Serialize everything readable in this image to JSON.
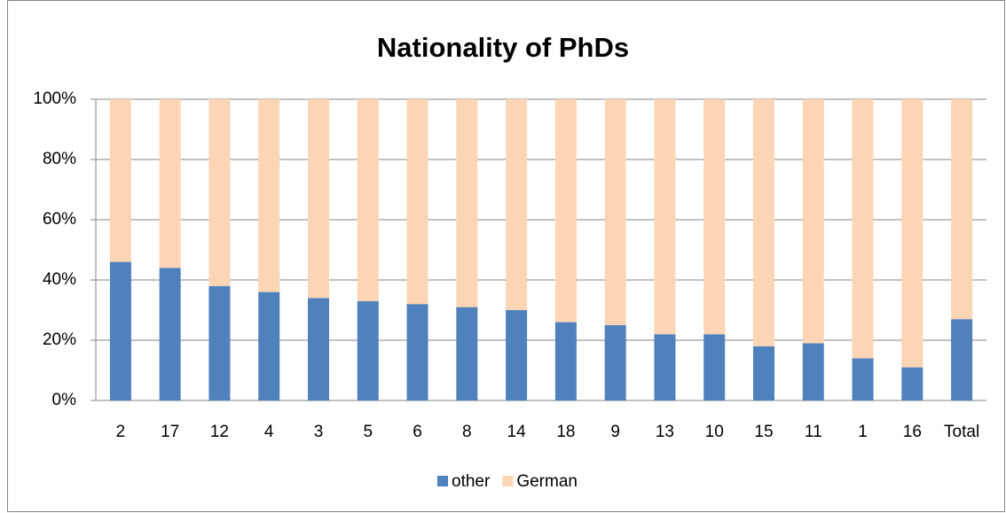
{
  "chart_data": {
    "type": "bar",
    "stacked": true,
    "title": "Nationality of PhDs",
    "categories": [
      "2",
      "17",
      "12",
      "4",
      "3",
      "5",
      "6",
      "8",
      "14",
      "18",
      "9",
      "13",
      "10",
      "15",
      "11",
      "1",
      "16",
      "Total"
    ],
    "series": [
      {
        "name": "other",
        "color": "#4f81bd",
        "values": [
          46,
          44,
          38,
          36,
          34,
          33,
          32,
          31,
          30,
          26,
          25,
          22,
          22,
          18,
          19,
          14,
          11,
          27
        ]
      },
      {
        "name": "German",
        "color": "#fcd5b5",
        "values": [
          54,
          56,
          62,
          64,
          66,
          67,
          68,
          69,
          70,
          74,
          75,
          78,
          78,
          82,
          81,
          86,
          89,
          73
        ]
      }
    ],
    "ylim": [
      0,
      100
    ],
    "yticks": [
      {
        "value": 0,
        "label": "0%"
      },
      {
        "value": 20,
        "label": "20%"
      },
      {
        "value": 40,
        "label": "40%"
      },
      {
        "value": 60,
        "label": "60%"
      },
      {
        "value": 80,
        "label": "80%"
      },
      {
        "value": 100,
        "label": "100%"
      }
    ],
    "grid": true,
    "legend": "bottom"
  }
}
